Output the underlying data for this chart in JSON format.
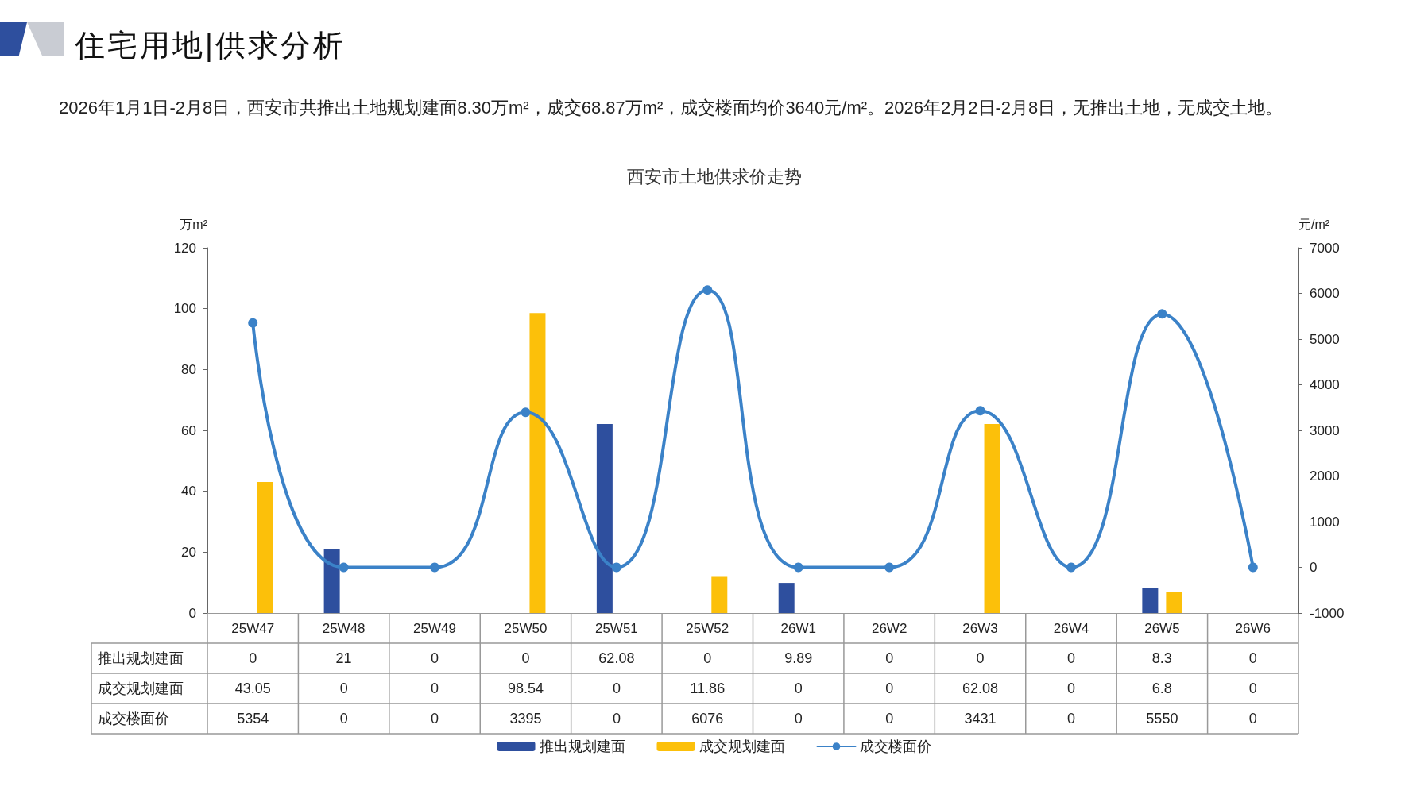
{
  "chart_data": {
    "type": "bar",
    "title": "西安市土地供求价走势",
    "annotations": [
      "住宅用地|供求分析",
      "2026年1月1日-2月8日，西安市共推出土地规划建面8.30万m²，成交68.87万m²，成交楼面均价3640元/m²。2026年2月2日-2月8日，无推出土地，无成交土地。"
    ],
    "ylabel": "万m²",
    "y2label": "元/m²",
    "categories": [
      "25W47",
      "25W48",
      "25W49",
      "25W50",
      "25W51",
      "25W52",
      "26W1",
      "26W2",
      "26W3",
      "26W4",
      "26W5",
      "26W6"
    ],
    "series": [
      {
        "name": "推出规划建面",
        "color": "#2e4f9e",
        "values": [
          0,
          21,
          0,
          0,
          62.08,
          0,
          9.89,
          0,
          0,
          0,
          8.3,
          0
        ]
      },
      {
        "name": "成交规划建面",
        "color": "#fcc00a",
        "values": [
          43.05,
          0,
          0,
          98.54,
          0,
          11.86,
          0,
          0,
          62.08,
          0,
          6.8,
          0
        ]
      },
      {
        "name": "成交楼面价",
        "type": "line",
        "axis": "y2",
        "color": "#3b82c8",
        "values": [
          5354,
          0,
          0,
          3395,
          0,
          6076,
          0,
          0,
          3431,
          0,
          5550,
          0
        ]
      }
    ],
    "ylim": [
      0,
      120
    ],
    "yticks": [
      0,
      20,
      40,
      60,
      80,
      100,
      120
    ],
    "y2lim": [
      -1000,
      7000
    ],
    "y2ticks": [
      -1000,
      0,
      1000,
      2000,
      3000,
      4000,
      5000,
      6000,
      7000
    ],
    "data_labels": true,
    "legend": "bottom",
    "marker": "circle",
    "line_style": "solid",
    "grid": false
  }
}
